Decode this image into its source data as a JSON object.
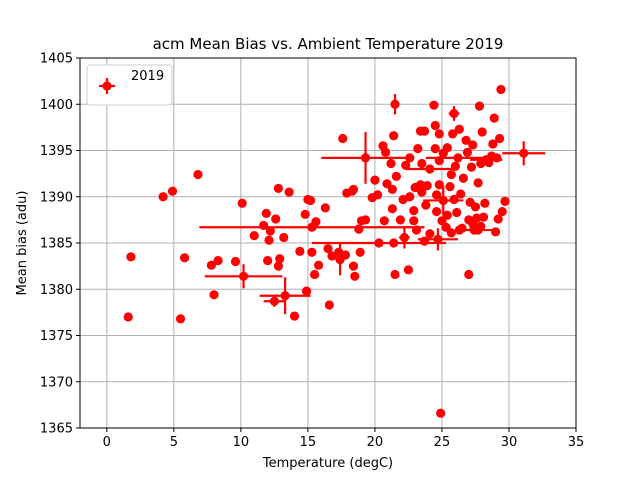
{
  "chart_data": {
    "type": "scatter",
    "title": "acm Mean Bias vs. Ambient Temperature 2019",
    "xlabel": "Temperature (degC)",
    "ylabel": "Mean bias (adu)",
    "xlim": [
      -2,
      35
    ],
    "ylim": [
      1365,
      1405
    ],
    "xticks": [
      0,
      5,
      10,
      15,
      20,
      25,
      30,
      35
    ],
    "yticks": [
      1365,
      1370,
      1375,
      1380,
      1385,
      1390,
      1395,
      1400,
      1405
    ],
    "grid": true,
    "legend_position": "top-left",
    "series": [
      {
        "name": "2019",
        "color": "#ff0000",
        "marker": "circle",
        "points": [
          {
            "x": 1.6,
            "y": 1377.0
          },
          {
            "x": 1.8,
            "y": 1383.5
          },
          {
            "x": 4.2,
            "y": 1390.0
          },
          {
            "x": 4.9,
            "y": 1390.6
          },
          {
            "x": 5.5,
            "y": 1376.8
          },
          {
            "x": 5.8,
            "y": 1383.4
          },
          {
            "x": 6.8,
            "y": 1392.4
          },
          {
            "x": 7.8,
            "y": 1382.6
          },
          {
            "x": 8.0,
            "y": 1379.4
          },
          {
            "x": 8.3,
            "y": 1383.1
          },
          {
            "x": 9.6,
            "y": 1383.0
          },
          {
            "x": 10.1,
            "y": 1389.3
          },
          {
            "x": 10.2,
            "y": 1381.4,
            "xerr": 2.9,
            "yerr": 1.3
          },
          {
            "x": 11.0,
            "y": 1385.8
          },
          {
            "x": 11.7,
            "y": 1386.9
          },
          {
            "x": 11.9,
            "y": 1388.2
          },
          {
            "x": 12.0,
            "y": 1383.1
          },
          {
            "x": 12.1,
            "y": 1385.3
          },
          {
            "x": 12.2,
            "y": 1386.3
          },
          {
            "x": 12.5,
            "y": 1378.7,
            "xerr": 0.8,
            "yerr": 0.6
          },
          {
            "x": 12.6,
            "y": 1387.6
          },
          {
            "x": 12.8,
            "y": 1382.5
          },
          {
            "x": 12.9,
            "y": 1383.3
          },
          {
            "x": 12.8,
            "y": 1390.9
          },
          {
            "x": 13.2,
            "y": 1385.6
          },
          {
            "x": 13.3,
            "y": 1379.3,
            "xerr": 1.9,
            "yerr": 2.0
          },
          {
            "x": 13.6,
            "y": 1390.5
          },
          {
            "x": 14.0,
            "y": 1377.1
          },
          {
            "x": 14.4,
            "y": 1384.1
          },
          {
            "x": 14.8,
            "y": 1388.1
          },
          {
            "x": 14.9,
            "y": 1379.8
          },
          {
            "x": 15.0,
            "y": 1389.7
          },
          {
            "x": 15.2,
            "y": 1389.6
          },
          {
            "x": 15.3,
            "y": 1384.0
          },
          {
            "x": 15.3,
            "y": 1386.7,
            "xerr": 8.4,
            "yerr": 0.3
          },
          {
            "x": 15.5,
            "y": 1381.6
          },
          {
            "x": 15.6,
            "y": 1387.3
          },
          {
            "x": 15.8,
            "y": 1382.6
          },
          {
            "x": 16.3,
            "y": 1388.8
          },
          {
            "x": 16.5,
            "y": 1384.4
          },
          {
            "x": 16.6,
            "y": 1378.3
          },
          {
            "x": 16.8,
            "y": 1383.6
          },
          {
            "x": 17.3,
            "y": 1384.0
          },
          {
            "x": 17.4,
            "y": 1383.2,
            "xerr": 0.3,
            "yerr": 1.7
          },
          {
            "x": 17.6,
            "y": 1396.3
          },
          {
            "x": 17.8,
            "y": 1383.7
          },
          {
            "x": 17.9,
            "y": 1390.4
          },
          {
            "x": 18.3,
            "y": 1390.6
          },
          {
            "x": 18.4,
            "y": 1390.8
          },
          {
            "x": 18.4,
            "y": 1382.5
          },
          {
            "x": 18.5,
            "y": 1381.4
          },
          {
            "x": 18.8,
            "y": 1386.5
          },
          {
            "x": 18.9,
            "y": 1384.0
          },
          {
            "x": 19.0,
            "y": 1387.4
          },
          {
            "x": 19.3,
            "y": 1387.5
          },
          {
            "x": 19.3,
            "y": 1394.2,
            "xerr": 3.3,
            "yerr": 2.8
          },
          {
            "x": 19.8,
            "y": 1389.9
          },
          {
            "x": 20.0,
            "y": 1391.8
          },
          {
            "x": 20.2,
            "y": 1390.2
          },
          {
            "x": 20.3,
            "y": 1385.0,
            "xerr": 5.0,
            "yerr": 0.3
          },
          {
            "x": 20.6,
            "y": 1395.5
          },
          {
            "x": 20.7,
            "y": 1387.4
          },
          {
            "x": 20.8,
            "y": 1394.8
          },
          {
            "x": 20.9,
            "y": 1391.4
          },
          {
            "x": 21.2,
            "y": 1393.6
          },
          {
            "x": 21.3,
            "y": 1388.7
          },
          {
            "x": 21.3,
            "y": 1390.8
          },
          {
            "x": 21.4,
            "y": 1385.0
          },
          {
            "x": 21.4,
            "y": 1396.6
          },
          {
            "x": 21.5,
            "y": 1400.0,
            "xerr": 0.3,
            "yerr": 1.1
          },
          {
            "x": 21.5,
            "y": 1381.6
          },
          {
            "x": 21.6,
            "y": 1392.2
          },
          {
            "x": 21.9,
            "y": 1387.5
          },
          {
            "x": 22.1,
            "y": 1389.7
          },
          {
            "x": 22.2,
            "y": 1385.6,
            "xerr": 0.4,
            "yerr": 1.2
          },
          {
            "x": 22.3,
            "y": 1393.4
          },
          {
            "x": 22.5,
            "y": 1382.1
          },
          {
            "x": 22.6,
            "y": 1390.0
          },
          {
            "x": 22.6,
            "y": 1394.2
          },
          {
            "x": 22.9,
            "y": 1388.5
          },
          {
            "x": 22.9,
            "y": 1387.4
          },
          {
            "x": 23.0,
            "y": 1391.0
          },
          {
            "x": 23.1,
            "y": 1386.4
          },
          {
            "x": 23.2,
            "y": 1395.2
          },
          {
            "x": 23.4,
            "y": 1391.3
          },
          {
            "x": 23.4,
            "y": 1397.1
          },
          {
            "x": 23.5,
            "y": 1390.5
          },
          {
            "x": 23.5,
            "y": 1393.6
          },
          {
            "x": 23.7,
            "y": 1385.2
          },
          {
            "x": 23.7,
            "y": 1397.1
          },
          {
            "x": 23.8,
            "y": 1389.1
          },
          {
            "x": 23.9,
            "y": 1391.2
          },
          {
            "x": 24.1,
            "y": 1393.0,
            "xerr": 1.8,
            "yerr": 0.3
          },
          {
            "x": 24.1,
            "y": 1386.0
          },
          {
            "x": 24.4,
            "y": 1399.9
          },
          {
            "x": 24.5,
            "y": 1395.2
          },
          {
            "x": 24.5,
            "y": 1397.7
          },
          {
            "x": 24.6,
            "y": 1388.4
          },
          {
            "x": 24.6,
            "y": 1390.2
          },
          {
            "x": 24.7,
            "y": 1385.4,
            "xerr": 1.5,
            "yerr": 1.2
          },
          {
            "x": 24.8,
            "y": 1391.3
          },
          {
            "x": 24.8,
            "y": 1393.9
          },
          {
            "x": 24.8,
            "y": 1396.8
          },
          {
            "x": 24.9,
            "y": 1366.6
          },
          {
            "x": 25.0,
            "y": 1387.4
          },
          {
            "x": 25.1,
            "y": 1394.7
          },
          {
            "x": 25.1,
            "y": 1389.6,
            "xerr": 1.5,
            "yerr": 1.6
          },
          {
            "x": 25.3,
            "y": 1386.7
          },
          {
            "x": 25.4,
            "y": 1388.0
          },
          {
            "x": 25.4,
            "y": 1395.3
          },
          {
            "x": 25.6,
            "y": 1391.1
          },
          {
            "x": 25.7,
            "y": 1386.1
          },
          {
            "x": 25.7,
            "y": 1392.4
          },
          {
            "x": 25.8,
            "y": 1396.8
          },
          {
            "x": 25.9,
            "y": 1399.0,
            "xerr": 0.4,
            "yerr": 0.8
          },
          {
            "x": 25.9,
            "y": 1389.7
          },
          {
            "x": 26.0,
            "y": 1393.3
          },
          {
            "x": 26.1,
            "y": 1388.3
          },
          {
            "x": 26.2,
            "y": 1394.2,
            "xerr": 2.4,
            "yerr": 0.4
          },
          {
            "x": 26.3,
            "y": 1397.3
          },
          {
            "x": 26.3,
            "y": 1386.4
          },
          {
            "x": 26.4,
            "y": 1390.3
          },
          {
            "x": 26.5,
            "y": 1386.6
          },
          {
            "x": 26.6,
            "y": 1392.0
          },
          {
            "x": 26.8,
            "y": 1396.1
          },
          {
            "x": 26.9,
            "y": 1394.8
          },
          {
            "x": 27.0,
            "y": 1381.6
          },
          {
            "x": 27.0,
            "y": 1387.5
          },
          {
            "x": 27.1,
            "y": 1389.4
          },
          {
            "x": 27.2,
            "y": 1393.2
          },
          {
            "x": 27.3,
            "y": 1387.1
          },
          {
            "x": 27.3,
            "y": 1395.6
          },
          {
            "x": 27.4,
            "y": 1386.4
          },
          {
            "x": 27.4,
            "y": 1386.6
          },
          {
            "x": 27.5,
            "y": 1388.9
          },
          {
            "x": 27.6,
            "y": 1387.7
          },
          {
            "x": 27.7,
            "y": 1391.5
          },
          {
            "x": 27.7,
            "y": 1386.4,
            "xerr": 1.2,
            "yerr": 0.3
          },
          {
            "x": 27.8,
            "y": 1399.8
          },
          {
            "x": 27.9,
            "y": 1393.6
          },
          {
            "x": 27.9,
            "y": 1386.8
          },
          {
            "x": 28.0,
            "y": 1397.0
          },
          {
            "x": 28.1,
            "y": 1387.8
          },
          {
            "x": 28.2,
            "y": 1389.3
          },
          {
            "x": 28.3,
            "y": 1394.0,
            "xerr": 1.2,
            "yerr": 0.4
          },
          {
            "x": 28.5,
            "y": 1393.7
          },
          {
            "x": 28.7,
            "y": 1394.4
          },
          {
            "x": 28.8,
            "y": 1395.7
          },
          {
            "x": 28.9,
            "y": 1398.5
          },
          {
            "x": 29.0,
            "y": 1386.2
          },
          {
            "x": 29.1,
            "y": 1394.2
          },
          {
            "x": 29.2,
            "y": 1387.6
          },
          {
            "x": 29.3,
            "y": 1396.3
          },
          {
            "x": 29.4,
            "y": 1401.6
          },
          {
            "x": 29.5,
            "y": 1388.4
          },
          {
            "x": 29.7,
            "y": 1389.5
          },
          {
            "x": 31.1,
            "y": 1394.7,
            "xerr": 1.6,
            "yerr": 1.3
          }
        ]
      }
    ]
  }
}
